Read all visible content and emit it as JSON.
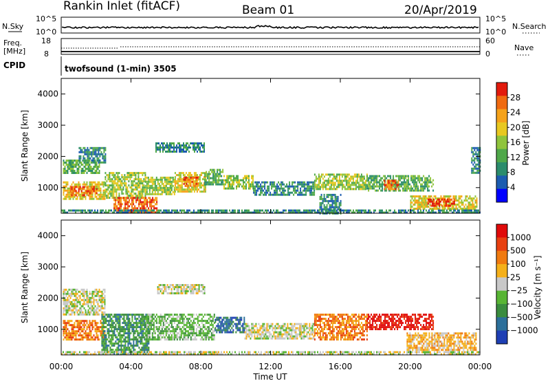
{
  "header": {
    "station": "Rankin Inlet (fitACF)",
    "beam": "Beam 01",
    "date": "20/Apr/2019"
  },
  "status_panels": {
    "nsky_label": "N.Sky",
    "nsky_ticks": [
      "10^5",
      "10^0"
    ],
    "nsearch_label": "N.Search",
    "nsearch_ticks": [
      "10^5",
      "10^0"
    ],
    "freq_label": "Freq.",
    "freq_unit": "[MHz]",
    "freq_ticks": [
      "18",
      "8"
    ],
    "nave_label": "Nave",
    "nave_ticks": [
      "60",
      "0"
    ],
    "cpid_label": "CPID",
    "cpid_text": "twofsound (1-min) 3505"
  },
  "chart_data": [
    {
      "type": "heatmap",
      "name": "power-panel",
      "ylabel": "Slant Range [km]",
      "xlabel": "",
      "xlim": [
        0,
        24
      ],
      "ylim": [
        180,
        4500
      ],
      "x_ticks": [
        "00:00",
        "04:00",
        "08:00",
        "12:00",
        "16:00",
        "20:00",
        "00:00"
      ],
      "y_ticks": [
        1000,
        2000,
        3000,
        4000
      ],
      "colorbar": {
        "label": "Power [dB]",
        "range": [
          0,
          32
        ],
        "tick_values": [
          4,
          8,
          12,
          16,
          20,
          24,
          28
        ],
        "colors": [
          "#0000ff",
          "#1c5cb0",
          "#2b8c6c",
          "#4fa84a",
          "#8fc43c",
          "#e8c820",
          "#f5a21a",
          "#f06a10",
          "#e21a0c"
        ]
      },
      "echo_regions": [
        {
          "t0": 0.1,
          "t1": 2.2,
          "r0": 1450,
          "r1": 1900,
          "level": 10
        },
        {
          "t0": 1.0,
          "t1": 2.5,
          "r0": 1800,
          "r1": 2300,
          "level": 6
        },
        {
          "t0": 0.1,
          "t1": 2.5,
          "r0": 650,
          "r1": 1200,
          "level": 16
        },
        {
          "t0": 0.5,
          "t1": 2.0,
          "r0": 750,
          "r1": 1050,
          "level": 26
        },
        {
          "t0": 2.5,
          "t1": 4.8,
          "r0": 700,
          "r1": 1500,
          "level": 14
        },
        {
          "t0": 3.0,
          "t1": 5.5,
          "r0": 200,
          "r1": 700,
          "level": 26
        },
        {
          "t0": 4.8,
          "t1": 6.5,
          "r0": 800,
          "r1": 1350,
          "level": 14
        },
        {
          "t0": 6.5,
          "t1": 8.3,
          "r0": 900,
          "r1": 1500,
          "level": 17
        },
        {
          "t0": 7.0,
          "t1": 7.8,
          "r0": 1050,
          "r1": 1350,
          "level": 25
        },
        {
          "t0": 5.4,
          "t1": 8.2,
          "r0": 2150,
          "r1": 2450,
          "level": 7
        },
        {
          "t0": 8.2,
          "t1": 9.3,
          "r0": 1100,
          "r1": 1600,
          "level": 9
        },
        {
          "t0": 9.3,
          "t1": 11.0,
          "r0": 1000,
          "r1": 1400,
          "level": 15
        },
        {
          "t0": 11.0,
          "t1": 14.5,
          "r0": 800,
          "r1": 1200,
          "level": 6
        },
        {
          "t0": 14.5,
          "t1": 17.5,
          "r0": 950,
          "r1": 1450,
          "level": 13
        },
        {
          "t0": 14.8,
          "t1": 16.0,
          "r0": 200,
          "r1": 800,
          "level": 8
        },
        {
          "t0": 17.5,
          "t1": 21.3,
          "r0": 900,
          "r1": 1400,
          "level": 12
        },
        {
          "t0": 18.5,
          "t1": 19.3,
          "r0": 950,
          "r1": 1250,
          "level": 25
        },
        {
          "t0": 20.0,
          "t1": 23.8,
          "r0": 350,
          "r1": 750,
          "level": 16
        },
        {
          "t0": 21.0,
          "t1": 22.5,
          "r0": 400,
          "r1": 650,
          "level": 28
        },
        {
          "t0": 23.5,
          "t1": 24.0,
          "r0": 1500,
          "r1": 2300,
          "level": 8
        },
        {
          "t0": 0.0,
          "t1": 24.0,
          "r0": 180,
          "r1": 300,
          "level": 6
        }
      ]
    },
    {
      "type": "heatmap",
      "name": "velocity-panel",
      "ylabel": "Slant Range [km]",
      "xlabel": "Time UT",
      "xlim": [
        0,
        24
      ],
      "ylim": [
        180,
        4500
      ],
      "x_ticks": [
        "00:00",
        "04:00",
        "08:00",
        "12:00",
        "16:00",
        "20:00",
        "00:00"
      ],
      "y_ticks": [
        1000,
        2000,
        3000,
        4000
      ],
      "colorbar": {
        "label": "Velocity [m s⁻¹]",
        "tick_labels": [
          "1000",
          "500",
          "100",
          "25",
          "−25",
          "−100",
          "−500",
          "−1000"
        ],
        "colors": [
          "#1e3fb4",
          "#2c6f9a",
          "#3a8c3e",
          "#58b534",
          "#c8c8c8",
          "#f5b01a",
          "#f07a10",
          "#e84010",
          "#e00a0a"
        ]
      },
      "echo_regions": [
        {
          "t0": 0.1,
          "t1": 2.5,
          "r0": 1450,
          "r1": 2300,
          "color_index": 4
        },
        {
          "t0": 0.1,
          "t1": 2.5,
          "r0": 650,
          "r1": 1300,
          "color_index": 6
        },
        {
          "t0": 2.3,
          "t1": 5.0,
          "r0": 200,
          "r1": 1500,
          "color_index": 2
        },
        {
          "t0": 4.8,
          "t1": 8.8,
          "r0": 700,
          "r1": 1500,
          "color_index": 3
        },
        {
          "t0": 5.5,
          "t1": 8.2,
          "r0": 2150,
          "r1": 2450,
          "color_index": 4
        },
        {
          "t0": 8.8,
          "t1": 10.5,
          "r0": 900,
          "r1": 1400,
          "color_index": 1
        },
        {
          "t0": 10.5,
          "t1": 14.5,
          "r0": 700,
          "r1": 1200,
          "color_index": 4
        },
        {
          "t0": 14.5,
          "t1": 17.5,
          "r0": 700,
          "r1": 1500,
          "color_index": 6
        },
        {
          "t0": 17.5,
          "t1": 21.3,
          "r0": 1000,
          "r1": 1500,
          "color_index": 8
        },
        {
          "t0": 19.8,
          "t1": 23.8,
          "r0": 350,
          "r1": 900,
          "color_index": 5
        },
        {
          "t0": 0.0,
          "t1": 24.0,
          "r0": 180,
          "r1": 300,
          "color_index": 4
        }
      ]
    }
  ]
}
